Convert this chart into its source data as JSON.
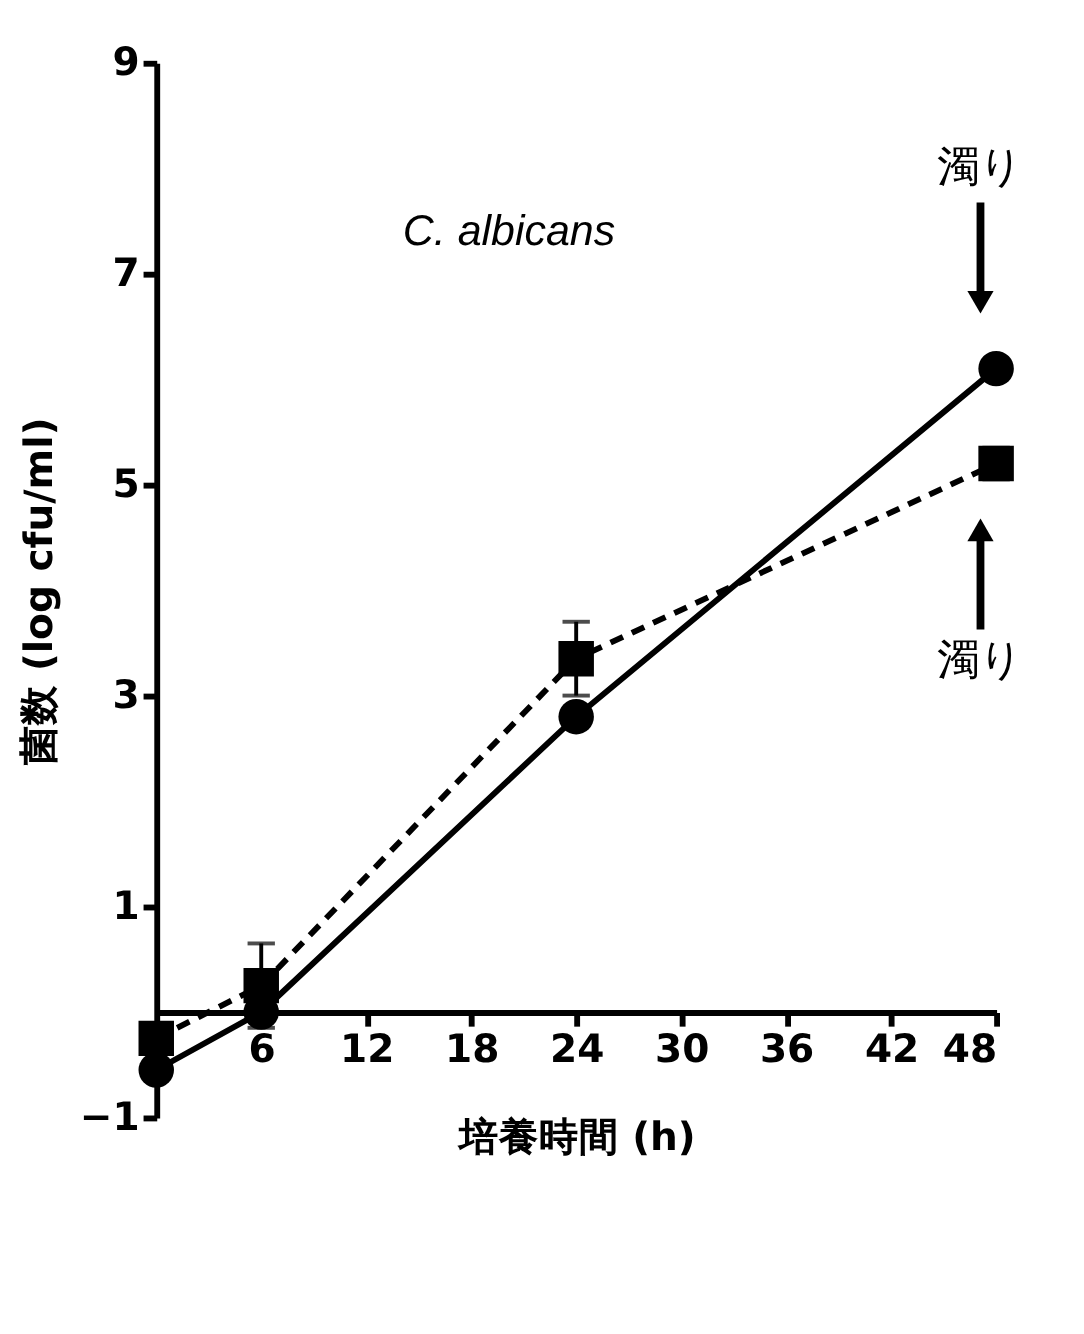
{
  "chart_data": {
    "type": "line",
    "xlabel": "培養時間 (h)",
    "ylabel": "菌数 (log cfu/ml)",
    "x": [
      0,
      6,
      24,
      48
    ],
    "series": [
      {
        "color": "#000000",
        "values": [
          -0.55,
          0.0,
          2.8,
          6.1
        ],
        "marker": "circle",
        "line_style": "solid"
      },
      {
        "color": "#000000",
        "values": [
          -0.25,
          0.25,
          3.35,
          5.2
        ],
        "marker": "square",
        "line_style": "dashed",
        "errors": [
          null,
          0.4,
          0.35,
          0.15
        ]
      }
    ],
    "xlim": [
      0,
      48
    ],
    "xticks": [
      6,
      12,
      18,
      24,
      30,
      36,
      42,
      48
    ],
    "ylim": [
      -1,
      9
    ],
    "yticks": [
      -1,
      1,
      3,
      5,
      7,
      9
    ],
    "grid": false,
    "annotations": [
      "C. albicans",
      "濁り",
      "濁り"
    ]
  }
}
